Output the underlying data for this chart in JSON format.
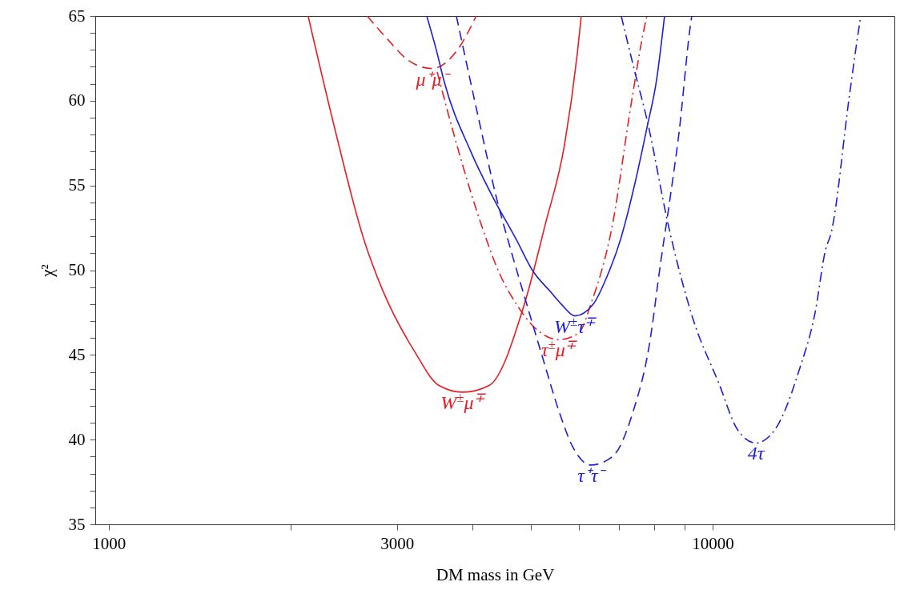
{
  "chart_data": {
    "type": "line",
    "xlabel": "DM mass in GeV",
    "ylabel": "χ²",
    "log": "x",
    "grid": false,
    "xlim": [
      950,
      20000
    ],
    "xticks": [
      1000,
      {
        "value": 2000,
        "label": null
      },
      3000,
      {
        "value": 4000,
        "label": null
      },
      {
        "value": 5000,
        "label": null
      },
      {
        "value": 6000,
        "label": null
      },
      {
        "value": 7000,
        "label": null
      },
      {
        "value": 8000,
        "label": null
      },
      {
        "value": 9000,
        "label": null
      },
      10000,
      {
        "value": 20000,
        "label": null
      }
    ],
    "ylim": [
      35,
      65
    ],
    "yticks": [
      35,
      {
        "value": 36,
        "label": null
      },
      {
        "value": 37,
        "label": null
      },
      {
        "value": 38,
        "label": null
      },
      {
        "value": 39,
        "label": null
      },
      40,
      {
        "value": 41,
        "label": null
      },
      {
        "value": 42,
        "label": null
      },
      {
        "value": 43,
        "label": null
      },
      {
        "value": 44,
        "label": null
      },
      45,
      {
        "value": 46,
        "label": null
      },
      {
        "value": 47,
        "label": null
      },
      {
        "value": 48,
        "label": null
      },
      {
        "value": 49,
        "label": null
      },
      50,
      {
        "value": 51,
        "label": null
      },
      {
        "value": 52,
        "label": null
      },
      {
        "value": 53,
        "label": null
      },
      {
        "value": 54,
        "label": null
      },
      55,
      {
        "value": 56,
        "label": null
      },
      {
        "value": 57,
        "label": null
      },
      {
        "value": 58,
        "label": null
      },
      {
        "value": 59,
        "label": null
      },
      60,
      {
        "value": 61,
        "label": null
      },
      {
        "value": 62,
        "label": null
      },
      {
        "value": 63,
        "label": null
      },
      {
        "value": 64,
        "label": null
      },
      65
    ],
    "series": [
      {
        "name": "W$^{±}$μ$^{∓}$",
        "color": "#e31e24",
        "line_style": "solid",
        "x": [
          2139,
          2366,
          2646,
          2843,
          3210,
          3522,
          3857,
          4266,
          4879,
          5283,
          5685,
          5970,
          6060
        ],
        "values": [
          65,
          58.4,
          51.8,
          48.8,
          45.2,
          43.2,
          42.8,
          43.2,
          48.0,
          52.7,
          57.4,
          62.8,
          65
        ]
      },
      {
        "name": "μ⁺μ⁻",
        "color": "#e31e24",
        "line_style": "dashed",
        "x": [
          2680,
          2900,
          3130,
          3430,
          3780,
          4060
        ],
        "values": [
          65,
          63.6,
          62.4,
          61.9,
          63.0,
          65
        ]
      },
      {
        "name": "τ$^{±}$μ$^{∓}$",
        "color": "#e31e24",
        "line_style": "dashdot",
        "x": [
          3499,
          3798,
          4138,
          4425,
          4732,
          5076,
          5564,
          6003,
          6286,
          6827,
          7322,
          7717,
          7785
        ],
        "values": [
          61.7,
          57.0,
          52.7,
          49.9,
          48.0,
          46.6,
          45.9,
          46.3,
          48.0,
          52.7,
          59.7,
          64.4,
          65
        ]
      },
      {
        "name": "W$^{±}$τ$^{∓}$",
        "color": "#1f1fd0",
        "line_style": "solid",
        "x": [
          3362,
          3487,
          3595,
          3977,
          4357,
          4732,
          5029,
          5398,
          5615,
          5914,
          6346,
          6680,
          7037,
          7434,
          7785,
          8074,
          8325
        ],
        "values": [
          65,
          63.0,
          61.1,
          57.0,
          54.1,
          51.8,
          50.0,
          48.7,
          48.0,
          47.3,
          48.0,
          49.6,
          51.8,
          55.1,
          58.4,
          61.2,
          65
        ]
      },
      {
        "name": "τ⁺τ⁻",
        "color": "#1f1fd0",
        "line_style": "dashed",
        "x": [
          3764,
          4100,
          4398,
          4632,
          4922,
          5234,
          5564,
          5861,
          6286,
          6827,
          7391,
          7857,
          8199,
          8531,
          8797,
          9209,
          9237
        ],
        "values": [
          65,
          58.9,
          54.1,
          51.2,
          48.0,
          44.8,
          41.7,
          39.6,
          38.5,
          39.0,
          41.7,
          45.6,
          50.4,
          54.6,
          58.1,
          64.7,
          65
        ]
      },
      {
        "name": "4τ",
        "color": "#1f1fd0",
        "line_style": "dashdot",
        "x": [
          7059,
          7434,
          7785,
          8453,
          9265,
          10247,
          10993,
          11793,
          12690,
          13910,
          14782,
          15382,
          15713,
          16862,
          17490,
          17600
        ],
        "values": [
          65,
          61.7,
          58.9,
          52.6,
          47.2,
          43.3,
          40.6,
          39.8,
          40.6,
          44.1,
          47.5,
          51.2,
          52.2,
          60.4,
          64.4,
          65
        ]
      }
    ]
  }
}
